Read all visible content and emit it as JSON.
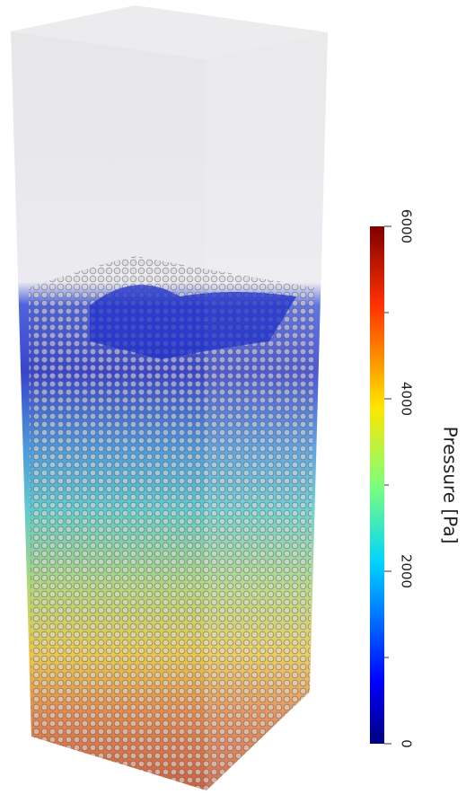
{
  "colorbar": {
    "label": "Pressure [Pa]",
    "lim": [
      0,
      6000
    ],
    "ticks": [
      0,
      2000,
      4000,
      6000
    ],
    "minor_ticks": [
      1000,
      3000,
      5000
    ]
  }
}
